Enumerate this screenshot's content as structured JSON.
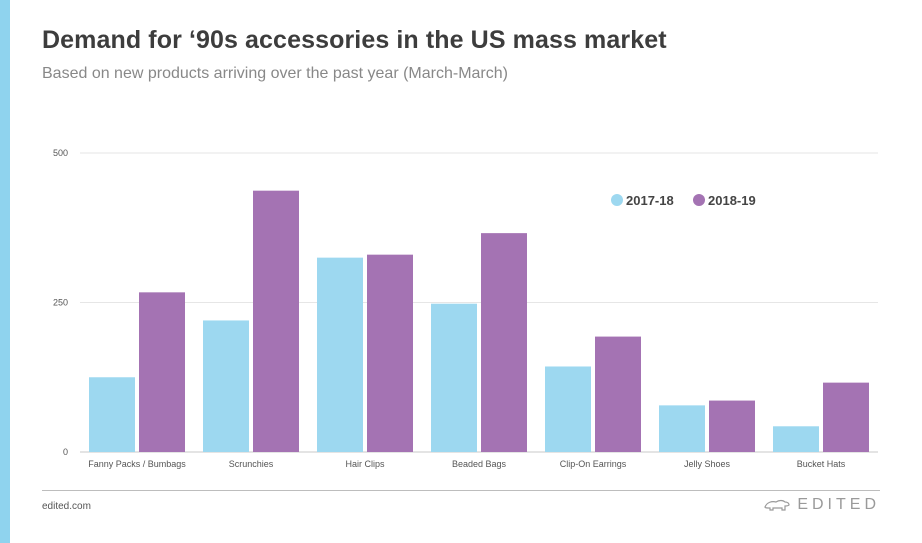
{
  "title": "Demand for ‘90s accessories in the US mass market",
  "subtitle": "Based on new products arriving over the past year (March-March)",
  "footer": {
    "site": "edited.com",
    "brand": "EDITED"
  },
  "colors": {
    "accent_bar": "#8fd3ee",
    "series_1": "#9dd8f0",
    "series_2": "#a473b3",
    "gridline": "#e6e6e6"
  },
  "chart_data": {
    "type": "bar",
    "title": "Demand for ‘90s accessories in the US mass market",
    "subtitle": "Based on new products arriving over the past year (March-March)",
    "xlabel": "",
    "ylabel": "",
    "ylim": [
      0,
      500
    ],
    "yticks": [
      0,
      250,
      500
    ],
    "grid": true,
    "legend_position": "top-right",
    "categories": [
      "Fanny Packs / Bumbags",
      "Scrunchies",
      "Hair Clips",
      "Beaded Bags",
      "Clip-On Earrings",
      "Jelly Shoes",
      "Bucket Hats"
    ],
    "series": [
      {
        "name": "2017-18",
        "color": "#9dd8f0",
        "values": [
          125,
          220,
          325,
          248,
          143,
          78,
          43
        ]
      },
      {
        "name": "2018-19",
        "color": "#a473b3",
        "values": [
          267,
          437,
          330,
          366,
          193,
          86,
          116
        ]
      }
    ]
  }
}
